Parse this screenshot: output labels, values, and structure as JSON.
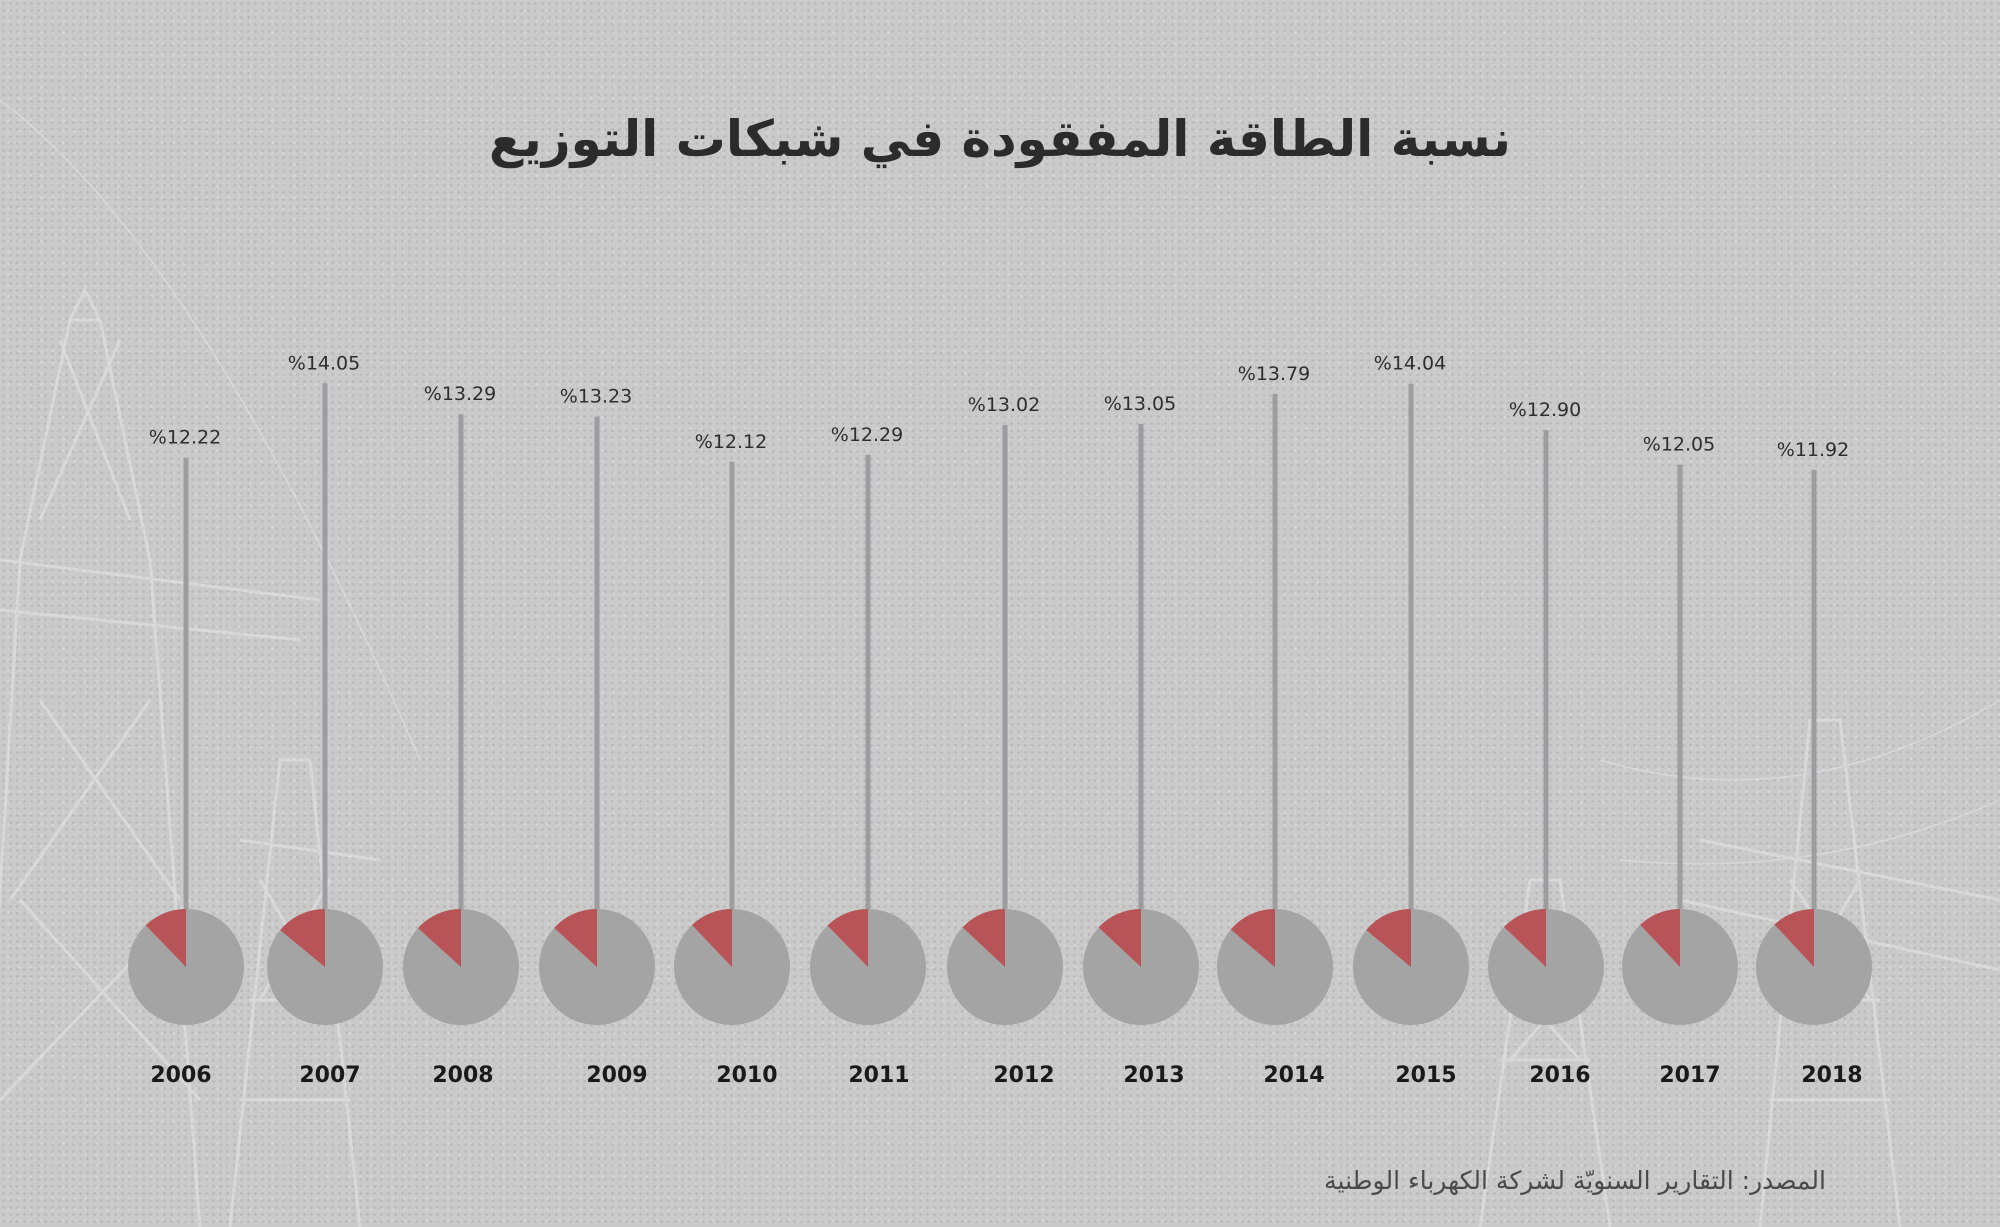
{
  "colors": {
    "background": "#cacaca",
    "pie_base": "#a5a4a4",
    "pie_slice": "#b85457",
    "stem": "#9d9da0",
    "title": "#2b2b2b"
  },
  "chart_data": {
    "type": "pie",
    "title": "نسبة الطاقة المفقودة في شبكات التوزيع",
    "source": "المصدر: التقارير السنويّة لشركة الكهرباء الوطنية",
    "unit": "%",
    "categories": [
      "2006",
      "2007",
      "2008",
      "2009",
      "2010",
      "2011",
      "2012",
      "2013",
      "2014",
      "2015",
      "2016",
      "2017",
      "2018"
    ],
    "values": [
      12.22,
      14.05,
      13.29,
      13.23,
      12.12,
      12.29,
      13.02,
      13.05,
      13.79,
      14.04,
      12.9,
      12.05,
      11.92
    ],
    "value_labels": [
      "%12.22",
      "%14.05",
      "%13.29",
      "%13.23",
      "%12.12",
      "%12.29",
      "%13.02",
      "%13.05",
      "%13.79",
      "%14.04",
      "%12.90",
      "%12.05",
      "%11.92"
    ]
  }
}
